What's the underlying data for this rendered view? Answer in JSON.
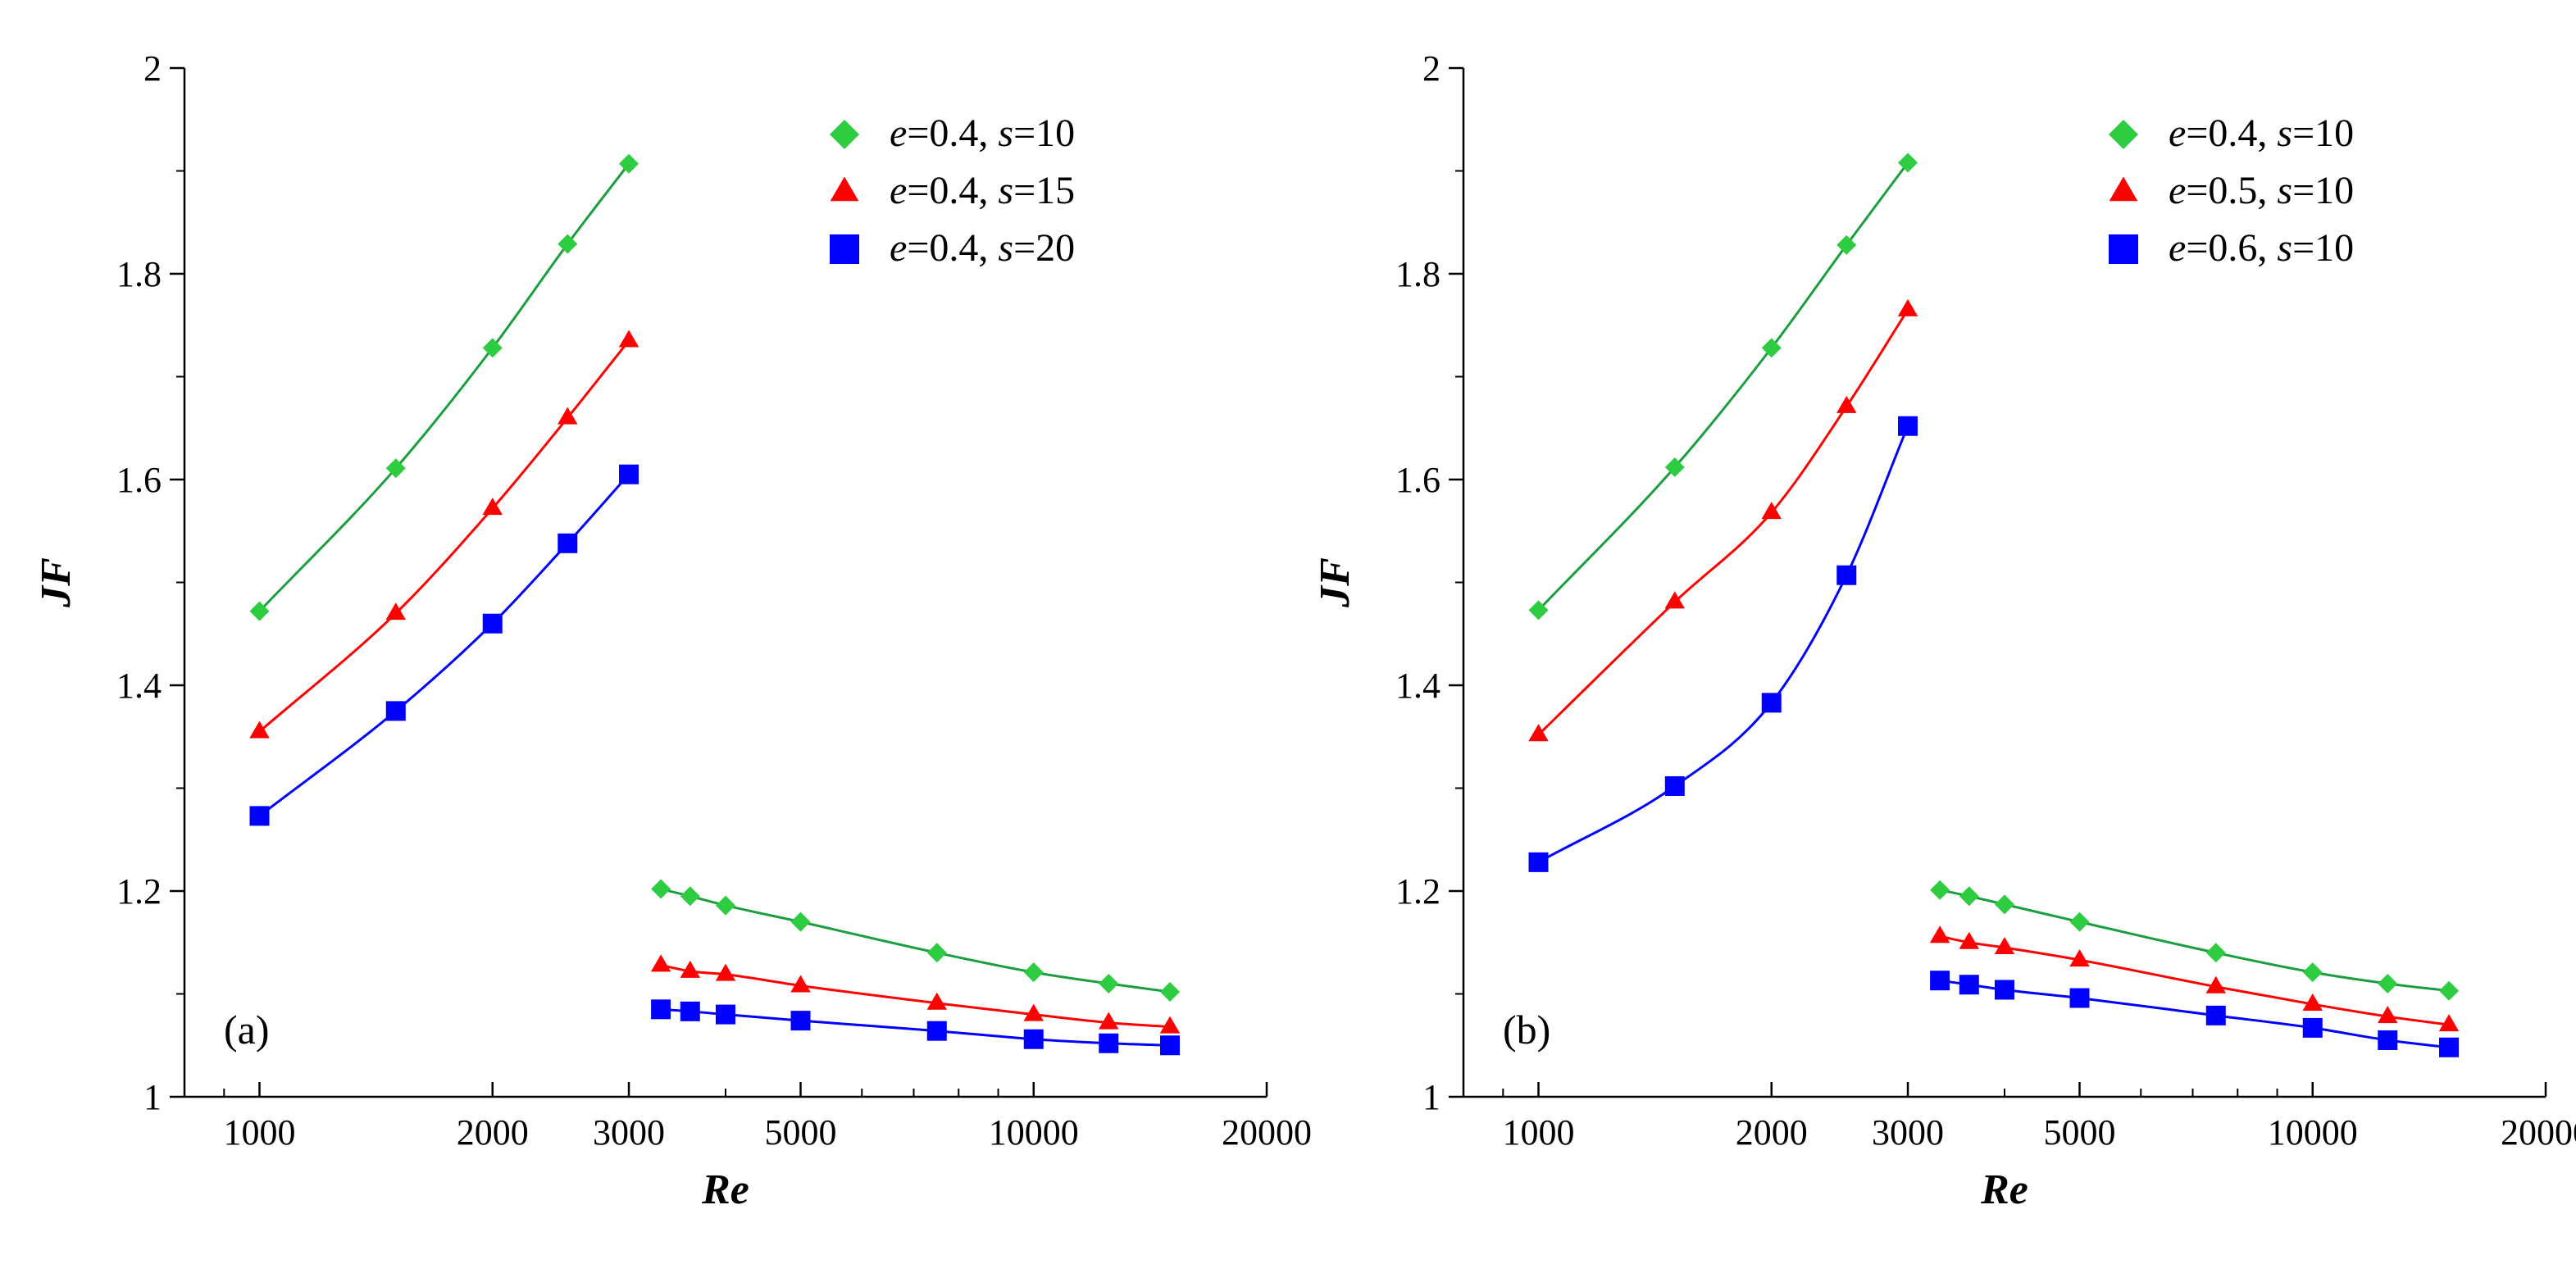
{
  "chart_data": [
    {
      "type": "line",
      "panel_label": "(a)",
      "xlabel": "Re",
      "ylabel": "JF",
      "xscale": "log",
      "xlim": [
        800,
        20000
      ],
      "ylim": [
        1,
        2
      ],
      "xticks": [
        1000,
        2000,
        3000,
        5000,
        10000,
        20000
      ],
      "xtick_labels": [
        "1000",
        "2000",
        "3000",
        "5000",
        "10000",
        "20000"
      ],
      "yticks": [
        1,
        1.2,
        1.4,
        1.6,
        1.8,
        2
      ],
      "ytick_labels": [
        "1",
        "1.2",
        "1.4",
        "1.6",
        "1.8",
        "2"
      ],
      "legend_position": "top-right",
      "series": [
        {
          "name": "e=0.4, s=10",
          "legend": {
            "e": "0.4",
            "s": "10"
          },
          "marker": "diamond",
          "color": "#2ECC40",
          "line_color": "#1a9e3f",
          "segments": [
            {
              "x": [
                1000,
                1500,
                2000,
                2500,
                3000
              ],
              "y": [
                1.472,
                1.611,
                1.728,
                1.829,
                1.907
              ]
            },
            {
              "x": [
                3300,
                3600,
                4000,
                5000,
                7500,
                10000,
                12500,
                15000
              ],
              "y": [
                1.202,
                1.195,
                1.186,
                1.17,
                1.14,
                1.121,
                1.11,
                1.102
              ]
            }
          ]
        },
        {
          "name": "e=0.4, s=15",
          "legend": {
            "e": "0.4",
            "s": "15"
          },
          "marker": "triangle",
          "color": "#FF0000",
          "line_color": "#FF0000",
          "segments": [
            {
              "x": [
                1000,
                1500,
                2000,
                2500,
                3000
              ],
              "y": [
                1.355,
                1.47,
                1.572,
                1.66,
                1.735
              ]
            },
            {
              "x": [
                3300,
                3600,
                4000,
                5000,
                7500,
                10000,
                12500,
                15000
              ],
              "y": [
                1.128,
                1.122,
                1.119,
                1.108,
                1.091,
                1.08,
                1.072,
                1.068
              ]
            }
          ]
        },
        {
          "name": "e=0.4, s=20",
          "legend": {
            "e": "0.4",
            "s": "20"
          },
          "marker": "square",
          "color": "#0000FF",
          "line_color": "#0000FF",
          "segments": [
            {
              "x": [
                1000,
                1500,
                2000,
                2500,
                3000
              ],
              "y": [
                1.273,
                1.375,
                1.46,
                1.538,
                1.605
              ]
            },
            {
              "x": [
                3300,
                3600,
                4000,
                5000,
                7500,
                10000,
                12500,
                15000
              ],
              "y": [
                1.085,
                1.083,
                1.08,
                1.074,
                1.064,
                1.056,
                1.052,
                1.05
              ]
            }
          ]
        }
      ]
    },
    {
      "type": "line",
      "panel_label": "(b)",
      "xlabel": "Re",
      "ylabel": "JF",
      "xscale": "log",
      "xlim": [
        800,
        20000
      ],
      "ylim": [
        1,
        2
      ],
      "xticks": [
        1000,
        2000,
        3000,
        5000,
        10000,
        20000
      ],
      "xtick_labels": [
        "1000",
        "2000",
        "3000",
        "5000",
        "10000",
        "20000"
      ],
      "yticks": [
        1,
        1.2,
        1.4,
        1.6,
        1.8,
        2
      ],
      "ytick_labels": [
        "1",
        "1.2",
        "1.4",
        "1.6",
        "1.8",
        "2"
      ],
      "legend_position": "top-right",
      "series": [
        {
          "name": "e=0.4, s=10",
          "legend": {
            "e": "0.4",
            "s": "10"
          },
          "marker": "diamond",
          "color": "#2ECC40",
          "line_color": "#1a9e3f",
          "segments": [
            {
              "x": [
                1000,
                1500,
                2000,
                2500,
                3000
              ],
              "y": [
                1.473,
                1.612,
                1.728,
                1.828,
                1.908
              ]
            },
            {
              "x": [
                3300,
                3600,
                4000,
                5000,
                7500,
                10000,
                12500,
                15000
              ],
              "y": [
                1.201,
                1.195,
                1.187,
                1.17,
                1.14,
                1.121,
                1.11,
                1.103
              ]
            }
          ]
        },
        {
          "name": "e=0.5, s=10",
          "legend": {
            "e": "0.5",
            "s": "10"
          },
          "marker": "triangle",
          "color": "#FF0000",
          "line_color": "#FF0000",
          "segments": [
            {
              "x": [
                1000,
                1500,
                2000,
                2500,
                3000
              ],
              "y": [
                1.352,
                1.481,
                1.568,
                1.671,
                1.765
              ]
            },
            {
              "x": [
                3300,
                3600,
                4000,
                5000,
                7500,
                10000,
                12500,
                15000
              ],
              "y": [
                1.156,
                1.15,
                1.145,
                1.133,
                1.107,
                1.09,
                1.078,
                1.07
              ]
            }
          ]
        },
        {
          "name": "e=0.6, s=10",
          "legend": {
            "e": "0.6",
            "s": "10"
          },
          "marker": "square",
          "color": "#0000FF",
          "line_color": "#0000FF",
          "segments": [
            {
              "x": [
                1000,
                1500,
                2000,
                2500,
                3000
              ],
              "y": [
                1.228,
                1.302,
                1.383,
                1.507,
                1.652
              ]
            },
            {
              "x": [
                3300,
                3600,
                4000,
                5000,
                7500,
                10000,
                12500,
                15000
              ],
              "y": [
                1.113,
                1.109,
                1.104,
                1.096,
                1.079,
                1.067,
                1.055,
                1.048
              ]
            }
          ]
        }
      ]
    }
  ]
}
